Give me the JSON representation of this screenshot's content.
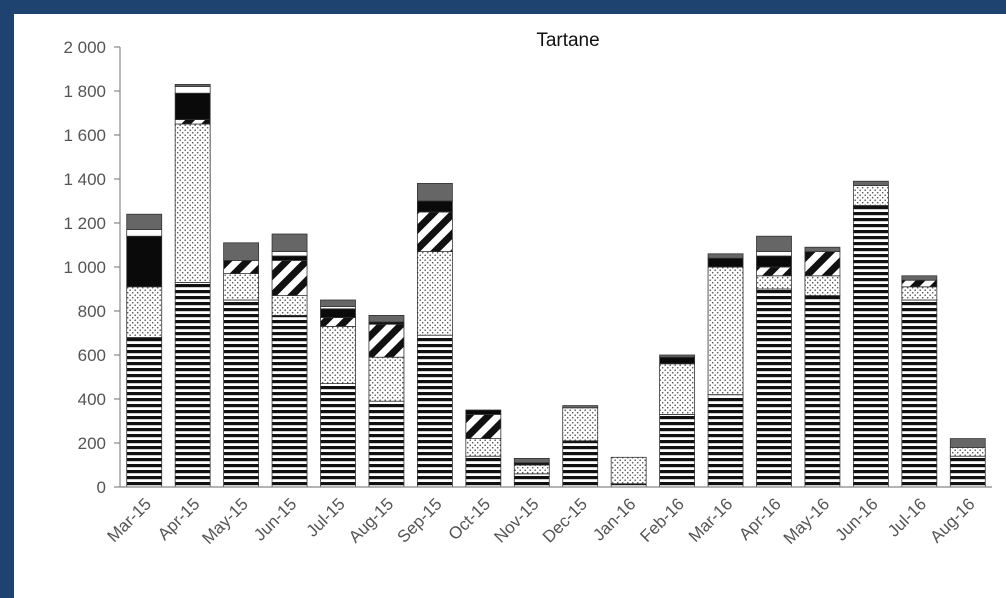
{
  "chart_data": {
    "type": "bar",
    "stacked": true,
    "title": "Tartane",
    "xlabel": "",
    "ylabel": "",
    "ylim": [
      0,
      2000
    ],
    "yticks": [
      0,
      200,
      400,
      600,
      800,
      1000,
      1200,
      1400,
      1600,
      1800,
      2000
    ],
    "ytick_labels": [
      "0",
      "200",
      "400",
      "600",
      "800",
      "1 000",
      "1 200",
      "1 400",
      "1 600",
      "1 800",
      "2 000"
    ],
    "grid": false,
    "legend": "none",
    "categories": [
      "Mar-15",
      "Apr-15",
      "May-15",
      "Jun-15",
      "Jul-15",
      "Aug-15",
      "Sep-15",
      "Oct-15",
      "Nov-15",
      "Dec-15",
      "Jan-16",
      "Feb-16",
      "Mar-16",
      "Apr-16",
      "May-16",
      "Jun-16",
      "Jul-16",
      "Aug-16"
    ],
    "series": [
      {
        "pattern": "horizontal-lines",
        "values": [
          680,
          930,
          850,
          780,
          470,
          390,
          690,
          140,
          60,
          210,
          15,
          330,
          420,
          900,
          870,
          1280,
          850,
          140
        ]
      },
      {
        "pattern": "dots",
        "values": [
          230,
          720,
          120,
          90,
          260,
          200,
          380,
          80,
          40,
          150,
          120,
          230,
          580,
          60,
          90,
          90,
          60,
          40
        ]
      },
      {
        "pattern": "diagonal-stripes",
        "values": [
          0,
          20,
          60,
          160,
          40,
          150,
          180,
          110,
          0,
          0,
          0,
          0,
          0,
          40,
          110,
          0,
          30,
          0
        ]
      },
      {
        "pattern": "white",
        "values": [
          0,
          0,
          0,
          0,
          0,
          0,
          0,
          0,
          0,
          0,
          0,
          0,
          0,
          0,
          0,
          0,
          0,
          0
        ]
      },
      {
        "pattern": "black",
        "values": [
          230,
          120,
          0,
          20,
          40,
          10,
          50,
          20,
          10,
          0,
          0,
          30,
          40,
          50,
          0,
          0,
          0,
          0
        ]
      },
      {
        "pattern": "white",
        "values": [
          30,
          30,
          0,
          20,
          10,
          0,
          0,
          0,
          0,
          0,
          0,
          0,
          0,
          20,
          0,
          0,
          0,
          0
        ]
      },
      {
        "pattern": "dark-gray",
        "values": [
          70,
          10,
          80,
          80,
          30,
          30,
          80,
          0,
          20,
          10,
          0,
          10,
          20,
          70,
          20,
          20,
          20,
          40
        ]
      }
    ]
  }
}
